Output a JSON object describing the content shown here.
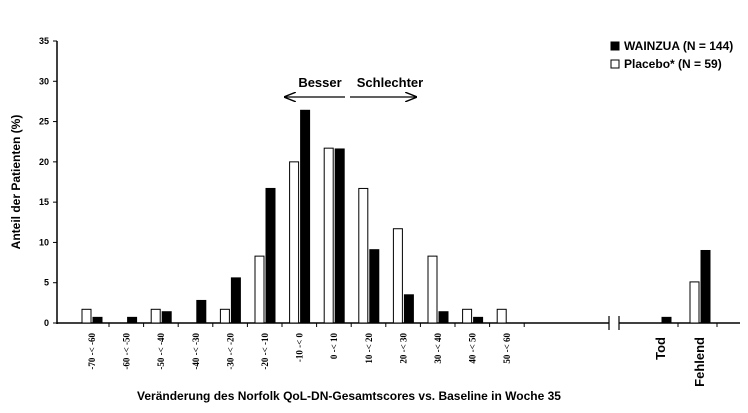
{
  "chart_data": {
    "type": "bar",
    "categories": [
      "-70 -< -60",
      "-60 -< -50",
      "-50 -< -40",
      "-40 -< -30",
      "-30 -< -20",
      "-20 -< -10",
      "-10 -< 0",
      "0 -< 10",
      "10 -< 20",
      "20 -< 30",
      "30 -< 40",
      "40 -< 50",
      "50 -< 60",
      "Tod",
      "Fehlend"
    ],
    "series": [
      {
        "name": "Placebo* (N = 59)",
        "color": "#ffffff",
        "values": [
          1.7,
          0,
          1.7,
          0,
          1.7,
          8.3,
          20.0,
          21.7,
          16.7,
          11.7,
          8.3,
          1.7,
          1.7,
          0,
          5.1
        ]
      },
      {
        "name": "WAINZUA (N = 144)",
        "color": "#000000",
        "values": [
          0.7,
          0.7,
          1.4,
          2.8,
          5.6,
          16.7,
          26.4,
          21.6,
          9.1,
          3.5,
          1.4,
          0.7,
          0,
          0.7,
          9.0
        ]
      }
    ],
    "ylim": [
      0,
      35
    ],
    "yticks": [
      0,
      5,
      10,
      15,
      20,
      25,
      30,
      35
    ],
    "y_label": "Anteil der Patienten (%)",
    "x_label": "Veränderung des Norfolk QoL-DN-Gesamtscores vs. Baseline in Woche 35",
    "annotations": [
      "Besser",
      "Schlechter"
    ]
  }
}
